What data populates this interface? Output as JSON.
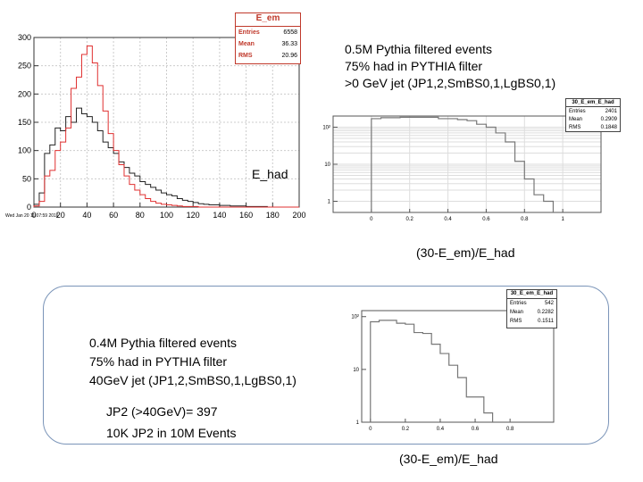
{
  "hist1": {
    "timestamp": "Wed Jan 20 11:07:59 2016",
    "label": "E_had",
    "stats": {
      "title": "E_em",
      "rows": [
        {
          "k": "Entries",
          "v": "6558"
        },
        {
          "k": "Mean",
          "v": "36.33"
        },
        {
          "k": "RMS",
          "v": "20.96"
        }
      ]
    }
  },
  "hist2": {
    "stats": {
      "title": "30_E_em_E_had",
      "rows": [
        {
          "k": "Entries",
          "v": "2401"
        },
        {
          "k": "Mean",
          "v": "0.2909"
        },
        {
          "k": "RMS",
          "v": "0.1848"
        }
      ]
    }
  },
  "hist3": {
    "stats": {
      "title": "30_E_em_E_had",
      "rows": [
        {
          "k": "Entries",
          "v": "542"
        },
        {
          "k": "Mean",
          "v": "0.2282"
        },
        {
          "k": "RMS",
          "v": "0.1511"
        }
      ]
    }
  },
  "text_top": {
    "line1": "0.5M Pythia filtered events",
    "line2": "75% had in PYTHIA filter",
    "line3": ">0 GeV jet (JP1,2,SmBS0,1,LgBS0,1)",
    "caption": "(30-E_em)/E_had"
  },
  "text_bottom": {
    "line1": "0.4M Pythia filtered events",
    "line2": "75% had in PYTHIA filter",
    "line3": "40GeV jet (JP1,2,SmBS0,1,LgBS0,1)",
    "line4": "JP2 (>40GeV)= 397",
    "line5": "10K JP2 in 10M Events",
    "caption": "(30-E_em)/E_had"
  },
  "chart_data": [
    {
      "type": "line",
      "xlim": [
        0,
        200
      ],
      "ylim": [
        0,
        300
      ],
      "xticks": [
        "0",
        "20",
        "40",
        "60",
        "80",
        "100",
        "120",
        "140",
        "160",
        "180",
        "200"
      ],
      "yticks": [
        "0",
        "50",
        "100",
        "150",
        "200",
        "250",
        "300"
      ],
      "bin_width": 4,
      "grid": true,
      "series": [
        {
          "color": "#222222",
          "values": [
            5,
            25,
            95,
            110,
            140,
            135,
            160,
            150,
            175,
            165,
            160,
            150,
            135,
            115,
            105,
            95,
            80,
            70,
            60,
            55,
            45,
            40,
            35,
            30,
            25,
            22,
            20,
            15,
            12,
            10,
            8,
            6,
            5,
            4,
            4,
            3,
            3,
            2,
            2,
            2,
            1,
            1,
            1,
            1,
            0,
            0,
            0,
            0,
            0,
            0
          ]
        },
        {
          "color": "#e03030",
          "values": [
            2,
            10,
            55,
            65,
            100,
            115,
            140,
            210,
            230,
            270,
            285,
            255,
            215,
            170,
            130,
            100,
            75,
            55,
            40,
            30,
            22,
            15,
            10,
            7,
            5,
            4,
            3,
            2,
            1,
            1,
            1,
            0,
            0,
            0,
            0,
            0,
            0,
            0,
            0,
            0,
            0,
            0,
            0,
            0,
            0,
            0,
            0,
            0,
            0,
            0
          ]
        }
      ]
    },
    {
      "type": "line",
      "xlim": [
        -0.2,
        1.2
      ],
      "log_y": true,
      "ylim": [
        0.5,
        200
      ],
      "xticks": [
        "0",
        "0.2",
        "0.4",
        "0.6",
        "0.8",
        "1"
      ],
      "yticks": [
        "1",
        "10",
        "10²"
      ],
      "grid": true,
      "series": [
        {
          "color": "#777777",
          "x": [
            0,
            0.05,
            0.1,
            0.15,
            0.2,
            0.25,
            0.3,
            0.35,
            0.4,
            0.45,
            0.5,
            0.55,
            0.6,
            0.65,
            0.7,
            0.75,
            0.8,
            0.85,
            0.9
          ],
          "values": [
            170,
            180,
            180,
            185,
            185,
            185,
            185,
            170,
            170,
            160,
            150,
            120,
            100,
            70,
            40,
            12,
            4,
            1.5,
            1
          ]
        }
      ]
    },
    {
      "type": "line",
      "xlim": [
        -0.05,
        1.05
      ],
      "log_y": true,
      "ylim": [
        1,
        130
      ],
      "xticks": [
        "0",
        "0.2",
        "0.4",
        "0.6",
        "0.8"
      ],
      "yticks": [
        "1",
        "10",
        "10²"
      ],
      "grid": false,
      "series": [
        {
          "color": "#777777",
          "x": [
            0,
            0.05,
            0.1,
            0.15,
            0.2,
            0.25,
            0.3,
            0.35,
            0.4,
            0.45,
            0.5,
            0.55,
            0.6,
            0.65,
            0.7,
            0.75,
            0.8
          ],
          "values": [
            80,
            85,
            85,
            75,
            72,
            50,
            48,
            30,
            20,
            12,
            7,
            3,
            3,
            1.5,
            1,
            1,
            1
          ]
        }
      ]
    }
  ]
}
